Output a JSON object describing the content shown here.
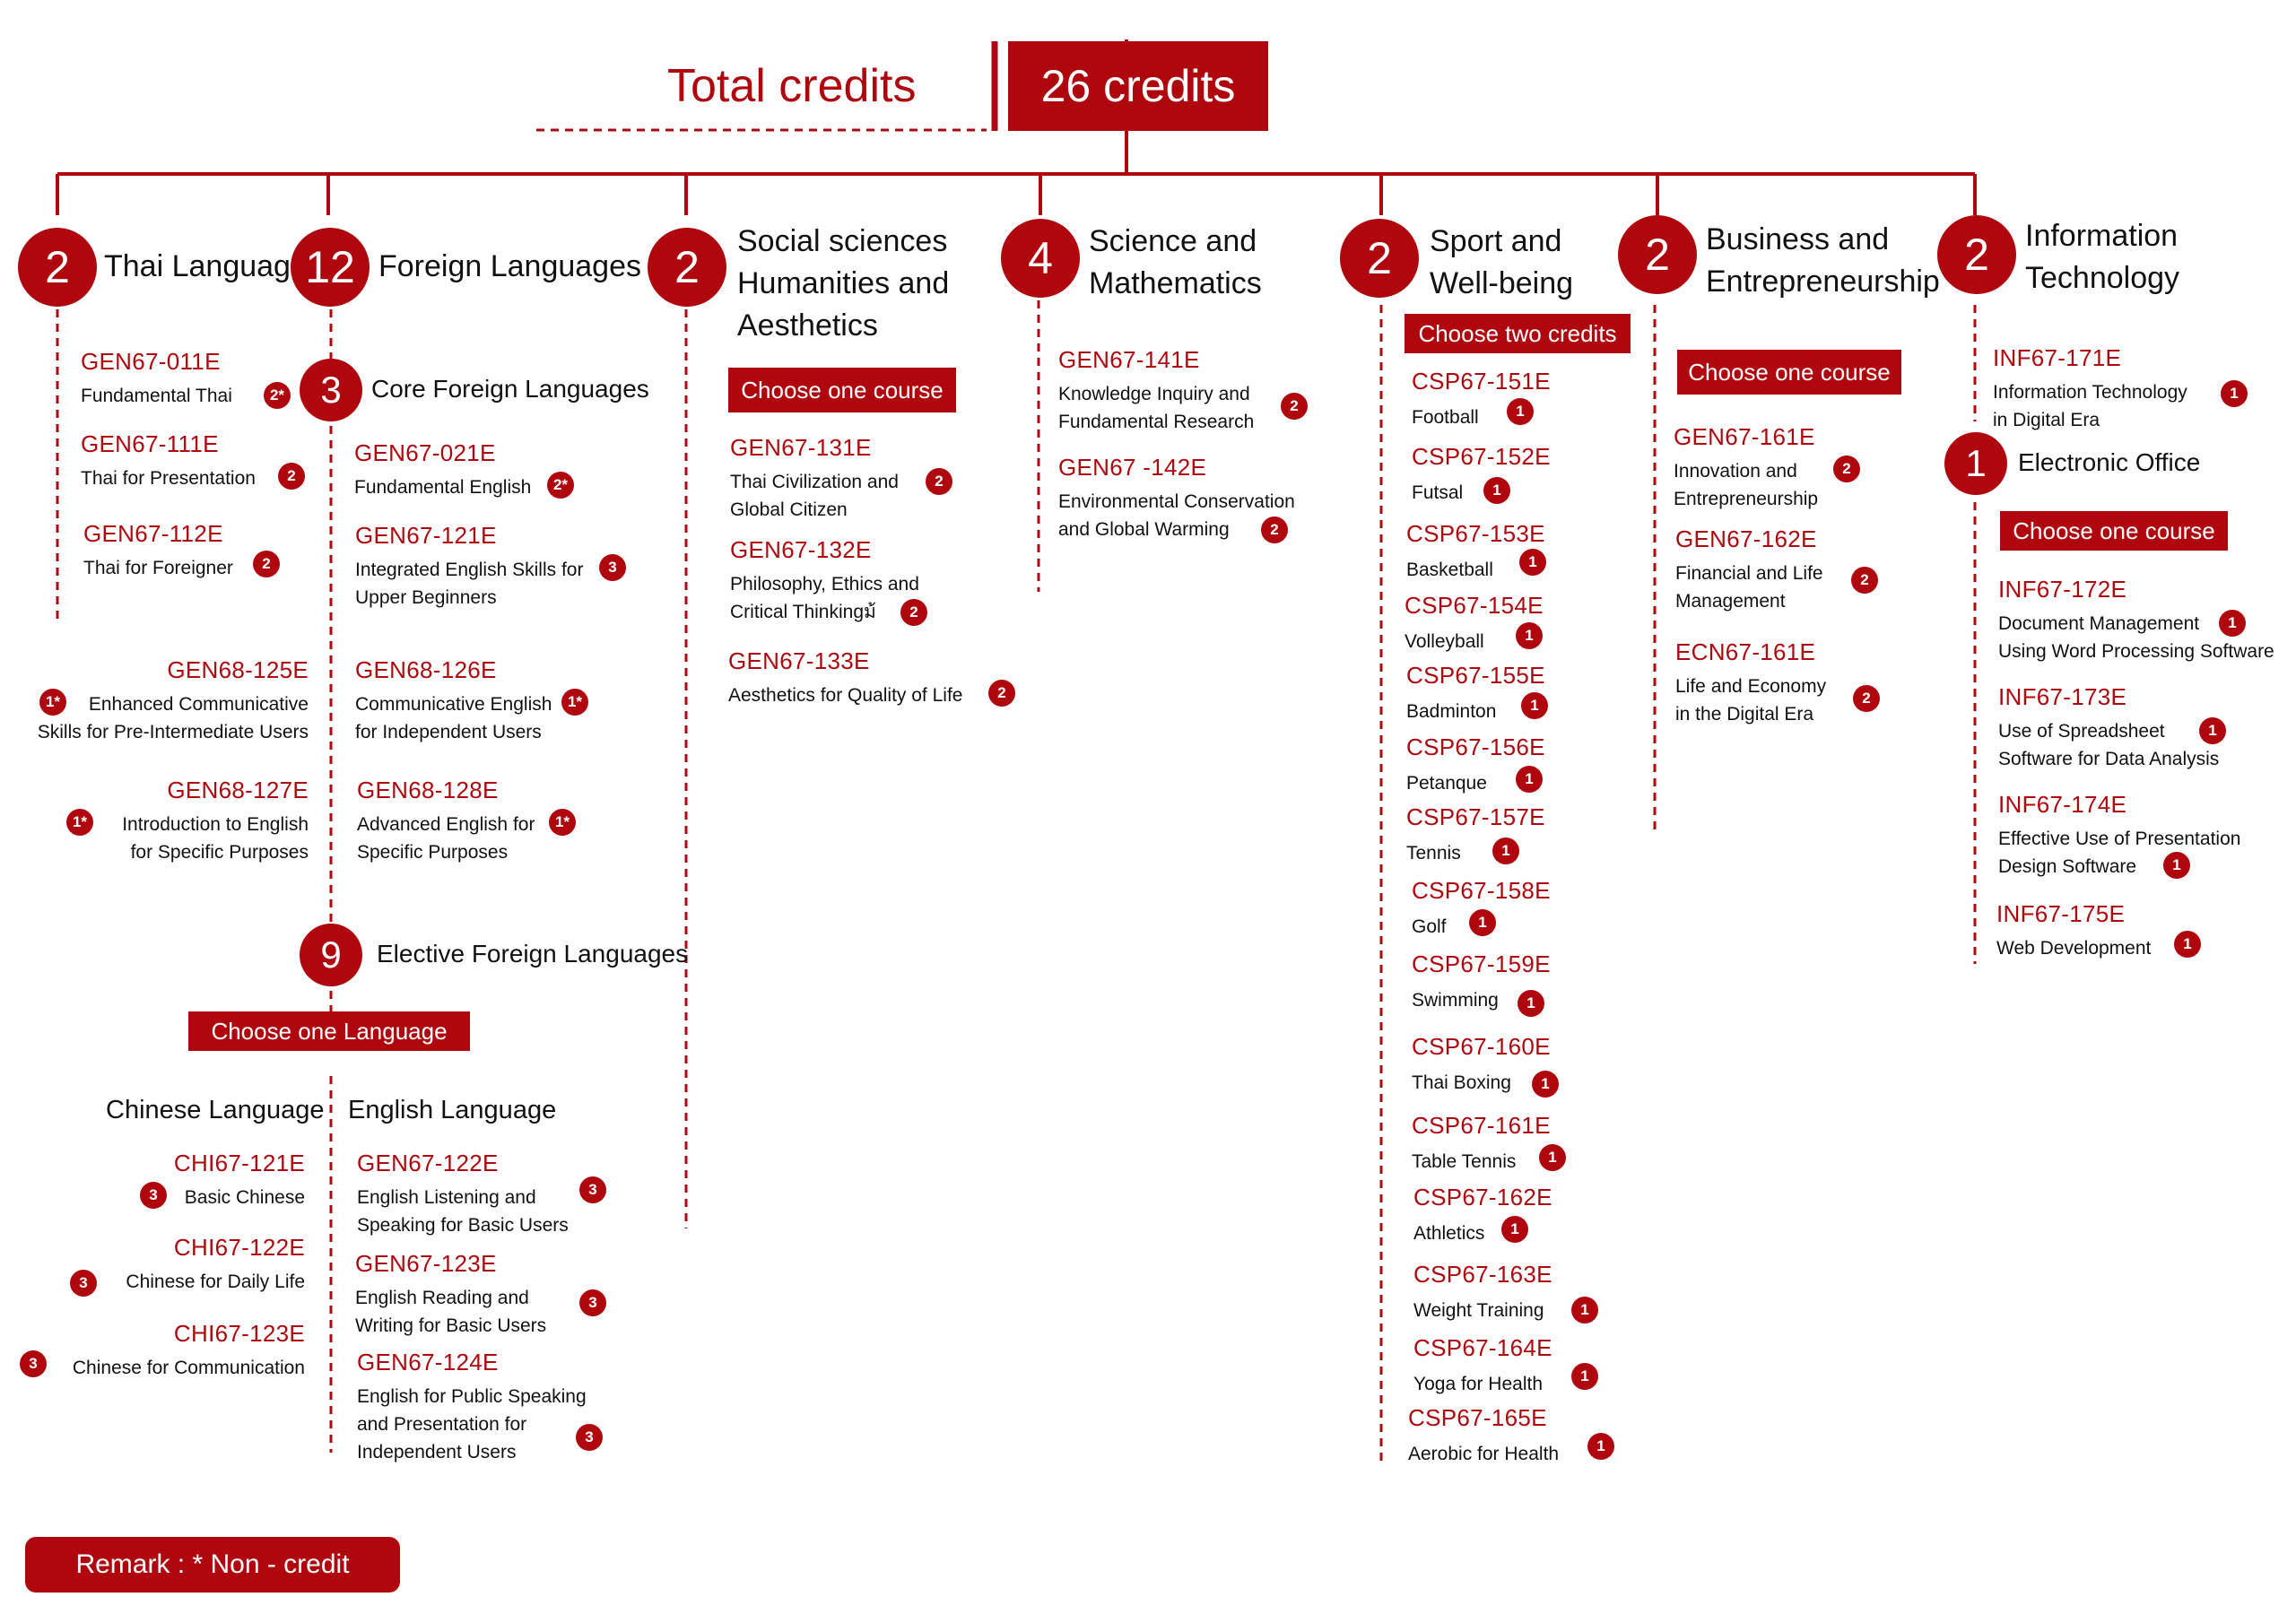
{
  "header": {
    "total_label": "Total credits",
    "total_value": "26 credits"
  },
  "thai": {
    "credits": "2",
    "title": "Thai Language",
    "courses": [
      {
        "code": "GEN67-011E",
        "name": "Fundamental Thai",
        "credit": "2*"
      },
      {
        "code": "GEN67-111E",
        "name": "Thai for Presentation",
        "credit": "2"
      },
      {
        "code": "GEN67-112E",
        "name": "Thai for Foreigner",
        "credit": "2"
      }
    ]
  },
  "foreign": {
    "credits": "12",
    "title": "Foreign Languages",
    "core": {
      "credits": "3",
      "title": "Core Foreign Languages"
    },
    "right_courses": [
      {
        "code": "GEN67-021E",
        "name": [
          "Fundamental English"
        ],
        "credit": "2*"
      },
      {
        "code": "GEN67-121E",
        "name": [
          "Integrated English Skills for",
          "Upper Beginners"
        ],
        "credit": "3"
      },
      {
        "code": "GEN68-126E",
        "name": [
          "Communicative English",
          "for Independent Users"
        ],
        "credit": "1*"
      },
      {
        "code": "GEN68-128E",
        "name": [
          "Advanced English for",
          "Specific Purposes"
        ],
        "credit": "1*"
      }
    ],
    "left_courses": [
      {
        "code": "GEN68-125E",
        "name": [
          "Enhanced Communicative",
          "Skills for Pre-Intermediate Users"
        ],
        "credit": "1*"
      },
      {
        "code": "GEN68-127E",
        "name": [
          "Introduction to English",
          "for Specific Purposes"
        ],
        "credit": "1*"
      }
    ],
    "elective": {
      "credits": "9",
      "title": "Elective Foreign Languages",
      "choose": "Choose one Language",
      "chinese": {
        "title": "Chinese Language",
        "courses": [
          {
            "code": "CHI67-121E",
            "name": "Basic Chinese",
            "credit": "3"
          },
          {
            "code": "CHI67-122E",
            "name": "Chinese for Daily Life",
            "credit": "3"
          },
          {
            "code": "CHI67-123E",
            "name": "Chinese for Communication",
            "credit": "3"
          }
        ]
      },
      "english": {
        "title": "English Language",
        "courses": [
          {
            "code": "GEN67-122E",
            "name": [
              "English Listening and",
              "Speaking for Basic Users"
            ],
            "credit": "3"
          },
          {
            "code": "GEN67-123E",
            "name": [
              "English Reading and",
              "Writing for Basic Users"
            ],
            "credit": "3"
          },
          {
            "code": "GEN67-124E",
            "name": [
              "English for Public Speaking",
              "and Presentation for",
              "Independent Users"
            ],
            "credit": "3"
          }
        ]
      }
    }
  },
  "social": {
    "credits": "2",
    "title": [
      "Social sciences",
      "Humanities and",
      "Aesthetics"
    ],
    "choose": "Choose one course",
    "courses": [
      {
        "code": "GEN67-131E",
        "name": [
          "Thai Civilization and",
          "Global Citizen"
        ],
        "credit": "2"
      },
      {
        "code": "GEN67-132E",
        "name": [
          "Philosophy, Ethics and",
          "Critical Thinkingม้"
        ],
        "credit": "2"
      },
      {
        "code": "GEN67-133E",
        "name": [
          "Aesthetics for Quality of Life"
        ],
        "credit": "2"
      }
    ]
  },
  "science": {
    "credits": "4",
    "title": [
      "Science and",
      "Mathematics"
    ],
    "courses": [
      {
        "code": "GEN67-141E",
        "name": [
          "Knowledge Inquiry and",
          "Fundamental Research"
        ],
        "credit": "2"
      },
      {
        "code": "GEN67 -142E",
        "name": [
          "Environmental Conservation",
          "and Global Warming"
        ],
        "credit": "2"
      }
    ]
  },
  "sport": {
    "credits": "2",
    "title": [
      "Sport and",
      "Well-being"
    ],
    "choose": "Choose two credits",
    "courses": [
      {
        "code": "CSP67-151E",
        "name": "Football",
        "credit": "1"
      },
      {
        "code": "CSP67-152E",
        "name": "Futsal",
        "credit": "1"
      },
      {
        "code": "CSP67-153E",
        "name": "Basketball",
        "credit": "1"
      },
      {
        "code": "CSP67-154E",
        "name": "Volleyball",
        "credit": "1"
      },
      {
        "code": "CSP67-155E",
        "name": "Badminton",
        "credit": "1"
      },
      {
        "code": "CSP67-156E",
        "name": "Petanque",
        "credit": "1"
      },
      {
        "code": "CSP67-157E",
        "name": "Tennis",
        "credit": "1"
      },
      {
        "code": "CSP67-158E",
        "name": "Golf",
        "credit": "1"
      },
      {
        "code": "CSP67-159E",
        "name": "Swimming",
        "credit": "1"
      },
      {
        "code": "CSP67-160E",
        "name": "Thai Boxing",
        "credit": "1"
      },
      {
        "code": "CSP67-161E",
        "name": "Table Tennis",
        "credit": "1"
      },
      {
        "code": "CSP67-162E",
        "name": "Athletics",
        "credit": "1"
      },
      {
        "code": "CSP67-163E",
        "name": "Weight Training",
        "credit": "1"
      },
      {
        "code": "CSP67-164E",
        "name": "Yoga for Health",
        "credit": "1"
      },
      {
        "code": "CSP67-165E",
        "name": "Aerobic for Health",
        "credit": "1"
      }
    ]
  },
  "business": {
    "credits": "2",
    "title": [
      "Business and",
      "Entrepreneurship"
    ],
    "choose": "Choose one course",
    "courses": [
      {
        "code": "GEN67-161E",
        "name": [
          "Innovation and",
          "Entrepreneurship"
        ],
        "credit": "2"
      },
      {
        "code": "GEN67-162E",
        "name": [
          "Financial and Life",
          "Management"
        ],
        "credit": "2"
      },
      {
        "code": "ECN67-161E",
        "name": [
          "Life and Economy",
          "in the Digital Era"
        ],
        "credit": "2"
      }
    ]
  },
  "it": {
    "credits": "2",
    "title": [
      "Information",
      "Technology"
    ],
    "course1": {
      "code": "INF67-171E",
      "name": [
        "Information Technology",
        "in Digital Era"
      ],
      "credit": "1"
    },
    "office": {
      "credits": "1",
      "title": "Electronic Office",
      "choose": "Choose one course"
    },
    "courses": [
      {
        "code": "INF67-172E",
        "name": [
          "Document Management",
          "Using Word Processing Software"
        ],
        "credit": "1"
      },
      {
        "code": "INF67-173E",
        "name": [
          "Use of Spreadsheet",
          "Software for Data Analysis"
        ],
        "credit": "1"
      },
      {
        "code": "INF67-174E",
        "name": [
          "Effective Use of Presentation",
          "Design Software"
        ],
        "credit": "1"
      },
      {
        "code": "INF67-175E",
        "name": [
          "Web Development"
        ],
        "credit": "1"
      }
    ]
  },
  "remark": "Remark : * Non - credit",
  "colors": {
    "accent": "#b0070f"
  }
}
